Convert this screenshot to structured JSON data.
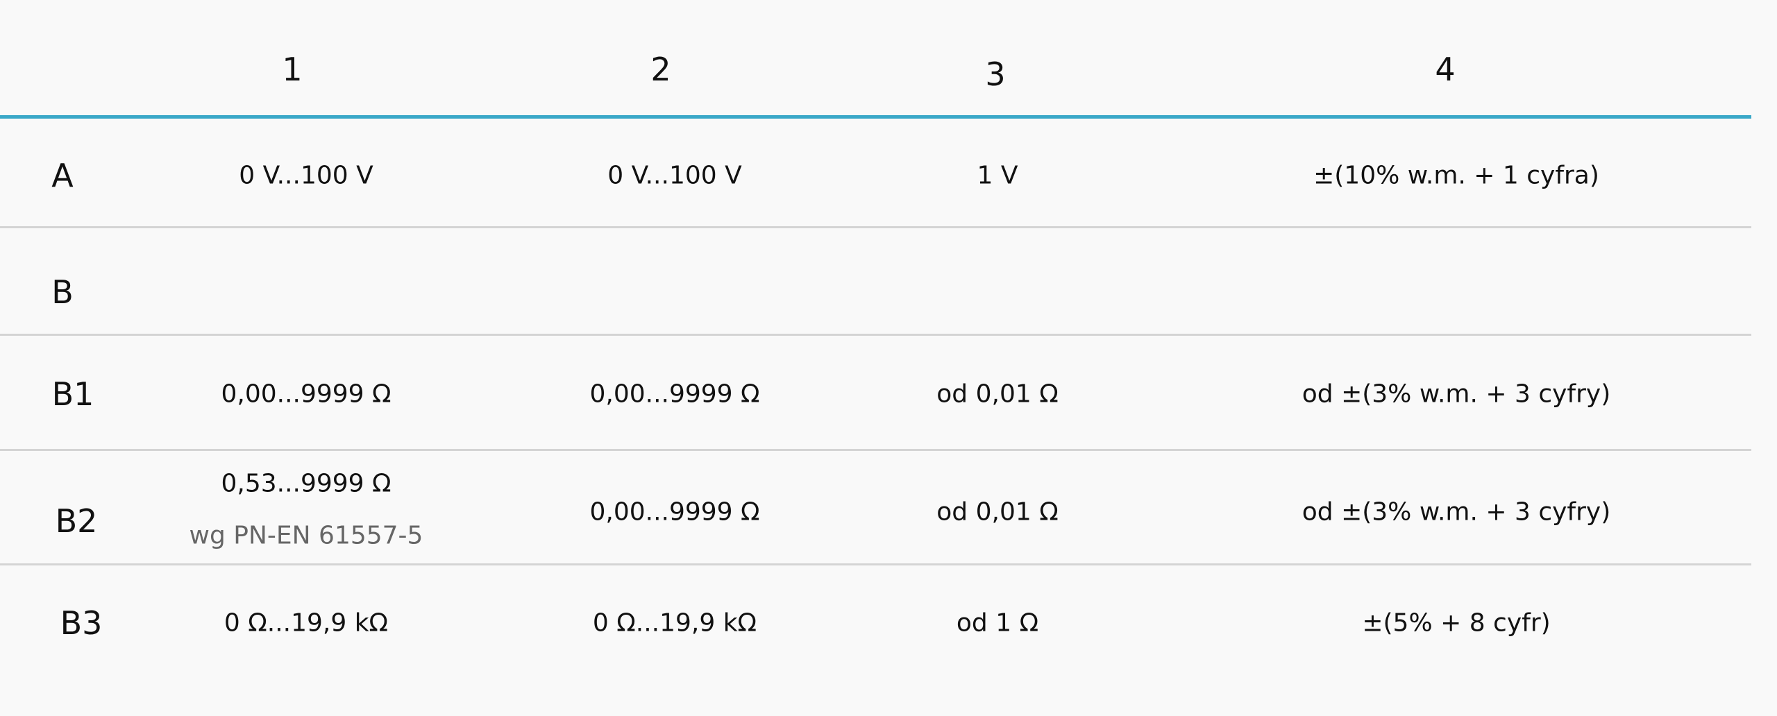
{
  "table": {
    "header": [
      "1",
      "2",
      "3",
      "4"
    ],
    "rows": [
      {
        "label": "A",
        "cells": [
          "0 V...100 V",
          "0 V...100 V",
          "1 V",
          "±(10% w.m. + 1 cyfra)"
        ]
      },
      {
        "label": "B",
        "cells": []
      },
      {
        "label": "B1",
        "cells": [
          "0,00...9999 Ω",
          "0,00...9999 Ω",
          "od 0,01 Ω",
          "od ±(3% w.m. + 3 cyfry)"
        ]
      },
      {
        "label": "B2",
        "cells": [
          "0,53...9999 Ω",
          "0,00...9999 Ω",
          "od 0,01 Ω",
          "od ±(3% w.m. + 3 cyfry)"
        ],
        "note": "wg PN-EN 61557-5"
      },
      {
        "label": "B3",
        "cells": [
          "0 Ω...19,9 kΩ",
          "0 Ω...19,9 kΩ",
          "od 1 Ω",
          "±(5% + 8 cyfr)"
        ]
      }
    ]
  }
}
